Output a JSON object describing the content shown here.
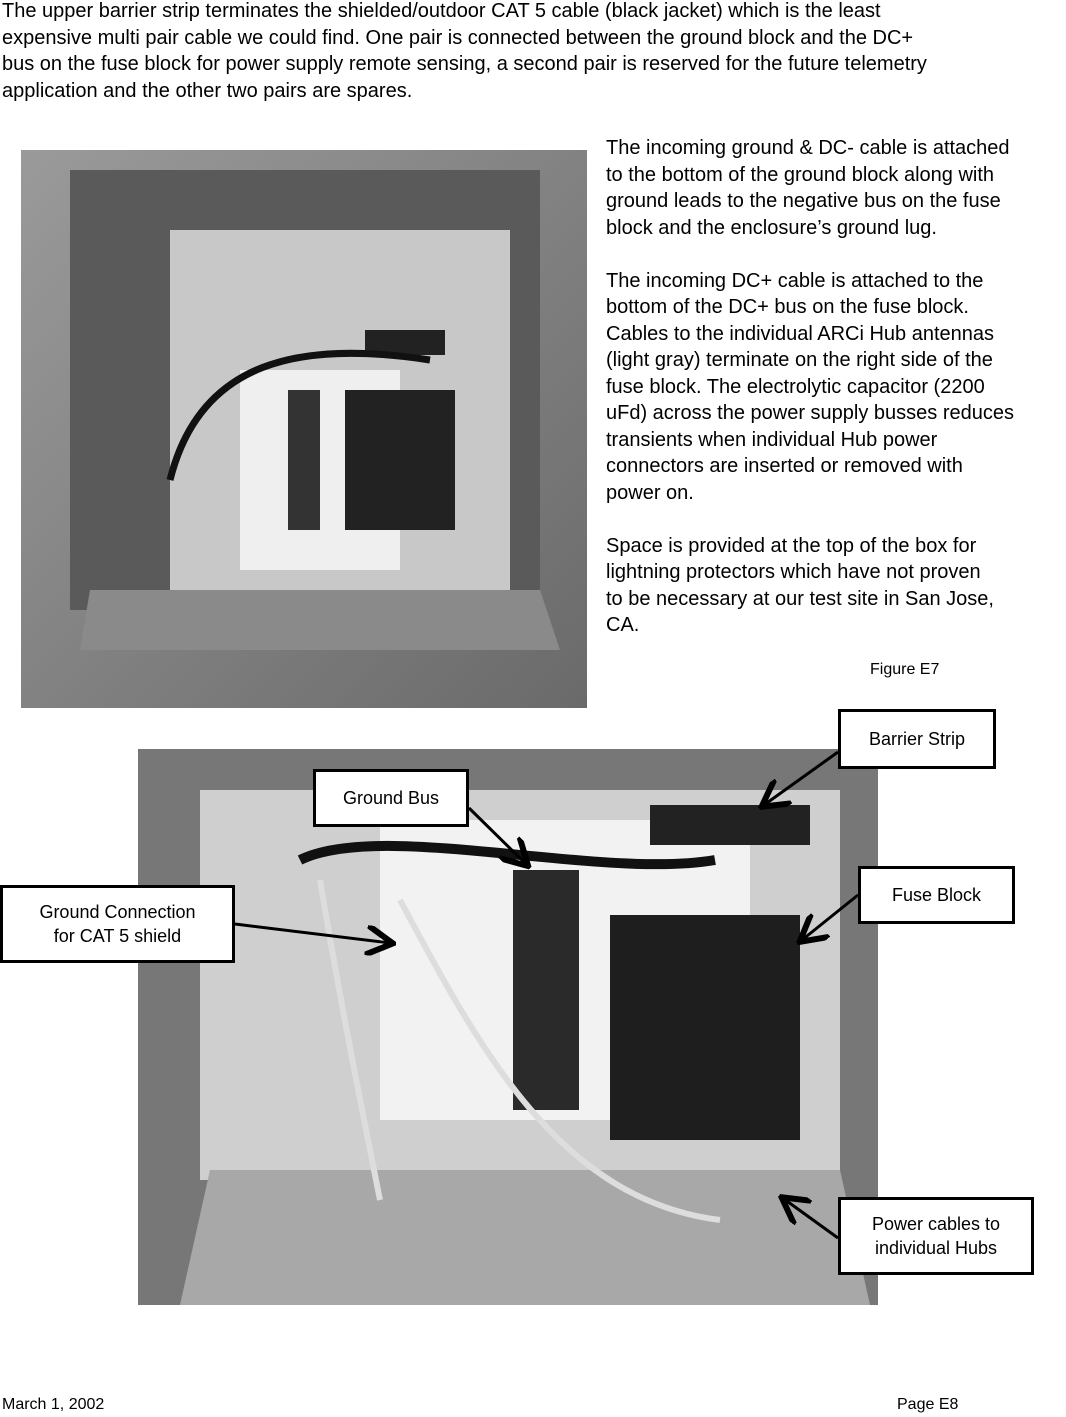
{
  "intro": {
    "lines": [
      "The upper barrier strip terminates the shielded/outdoor CAT 5 cable (black jacket) which is the least",
      "expensive multi pair cable we could find.  One pair is connected between the ground block and the DC+",
      "bus on the fuse block for power supply remote sensing, a second pair is reserved for the future telemetry",
      "application and the other two pairs are spares."
    ]
  },
  "side_text": {
    "paragraphs": [
      [
        "The incoming ground & DC- cable is attached",
        "to the bottom of the ground block along with",
        "ground leads to the negative bus on the fuse",
        "block and the enclosure’s ground lug."
      ],
      [
        "The incoming DC+ cable is attached to the",
        "bottom of the DC+ bus on the fuse block.",
        "Cables to the individual ARCi Hub antennas",
        "(light gray) terminate on the right side of the",
        "fuse block.   The electrolytic capacitor (2200",
        "uFd) across the power supply busses reduces",
        "transients when individual Hub power",
        "connectors are inserted or removed with",
        "power on."
      ],
      [
        "Space is provided at the top of the box for",
        "lightning protectors which have not proven",
        "to be necessary at our test site in San Jose,",
        "CA."
      ]
    ]
  },
  "figure1": {
    "caption": "Figure E7"
  },
  "figure2": {
    "callouts": [
      {
        "lines": [
          "Barrier  Strip"
        ]
      },
      {
        "lines": [
          "Ground Bus"
        ]
      },
      {
        "lines": [
          "Fuse Block"
        ]
      },
      {
        "lines": [
          "Ground Connection",
          "for CAT 5 shield"
        ]
      },
      {
        "lines": [
          "Power cables to",
          "individual Hubs"
        ]
      }
    ]
  },
  "footer": {
    "date": "March 1, 2002",
    "page": "Page E8"
  }
}
